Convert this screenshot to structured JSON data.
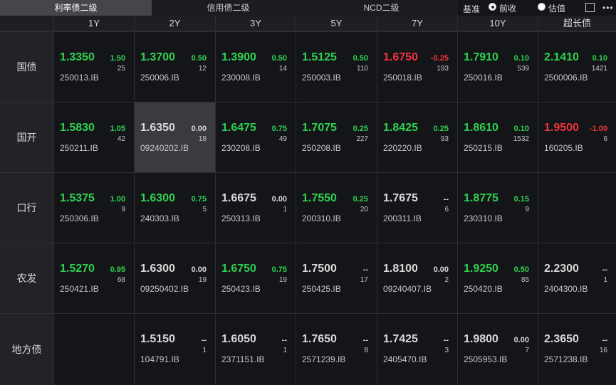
{
  "tabs": [
    "利率债二级",
    "信用债二级",
    "NCD二级"
  ],
  "active_tab": 0,
  "basis": {
    "label": "基准",
    "options": [
      "前收",
      "估值"
    ],
    "checked": 0
  },
  "columns": [
    "1Y",
    "2Y",
    "3Y",
    "5Y",
    "7Y",
    "10Y",
    "超长债"
  ],
  "rows": [
    {
      "label": "国债",
      "cells": [
        {
          "yield": "1.3350",
          "change": "1.50",
          "volume": "25",
          "code": "250013.IB",
          "color": "#2fd14f"
        },
        {
          "yield": "1.3700",
          "change": "0.50",
          "volume": "12",
          "code": "250006.IB",
          "color": "#2fd14f"
        },
        {
          "yield": "1.3900",
          "change": "0.50",
          "volume": "14",
          "code": "230008.IB",
          "color": "#2fd14f"
        },
        {
          "yield": "1.5125",
          "change": "0.50",
          "volume": "110",
          "code": "250003.IB",
          "color": "#2fd14f"
        },
        {
          "yield": "1.6750",
          "change": "-0.25",
          "volume": "193",
          "code": "250018.IB",
          "color": "#f2343d"
        },
        {
          "yield": "1.7910",
          "change": "0.10",
          "volume": "539",
          "code": "250016.IB",
          "color": "#2fd14f"
        },
        {
          "yield": "2.1410",
          "change": "0.10",
          "volume": "1421",
          "code": "2500006.IB",
          "color": "#2fd14f"
        }
      ]
    },
    {
      "label": "国开",
      "cells": [
        {
          "yield": "1.5830",
          "change": "1.05",
          "volume": "42",
          "code": "250211.IB",
          "color": "#2fd14f"
        },
        {
          "yield": "1.6350",
          "change": "0.00",
          "volume": "18",
          "code": "09240202.IB",
          "color": "#d9d9d9",
          "selected": true
        },
        {
          "yield": "1.6475",
          "change": "0.75",
          "volume": "49",
          "code": "230208.IB",
          "color": "#2fd14f"
        },
        {
          "yield": "1.7075",
          "change": "0.25",
          "volume": "227",
          "code": "250208.IB",
          "color": "#2fd14f"
        },
        {
          "yield": "1.8425",
          "change": "0.25",
          "volume": "93",
          "code": "220220.IB",
          "color": "#2fd14f"
        },
        {
          "yield": "1.8610",
          "change": "0.10",
          "volume": "1532",
          "code": "250215.IB",
          "color": "#2fd14f"
        },
        {
          "yield": "1.9500",
          "change": "-1.00",
          "volume": "6",
          "code": "160205.IB",
          "color": "#f2343d"
        }
      ]
    },
    {
      "label": "口行",
      "cells": [
        {
          "yield": "1.5375",
          "change": "1.00",
          "volume": "9",
          "code": "250306.IB",
          "color": "#2fd14f"
        },
        {
          "yield": "1.6300",
          "change": "0.75",
          "volume": "5",
          "code": "240303.IB",
          "color": "#2fd14f"
        },
        {
          "yield": "1.6675",
          "change": "0.00",
          "volume": "1",
          "code": "250313.IB",
          "color": "#d9d9d9"
        },
        {
          "yield": "1.7550",
          "change": "0.25",
          "volume": "20",
          "code": "200310.IB",
          "color": "#2fd14f"
        },
        {
          "yield": "1.7675",
          "change": "--",
          "volume": "6",
          "code": "200311.IB",
          "color": "#d9d9d9"
        },
        {
          "yield": "1.8775",
          "change": "0.15",
          "volume": "9",
          "code": "230310.IB",
          "color": "#2fd14f"
        },
        null
      ]
    },
    {
      "label": "农发",
      "cells": [
        {
          "yield": "1.5270",
          "change": "0.95",
          "volume": "68",
          "code": "250421.IB",
          "color": "#2fd14f"
        },
        {
          "yield": "1.6300",
          "change": "0.00",
          "volume": "19",
          "code": "09250402.IB",
          "color": "#d9d9d9"
        },
        {
          "yield": "1.6750",
          "change": "0.75",
          "volume": "19",
          "code": "250423.IB",
          "color": "#2fd14f"
        },
        {
          "yield": "1.7500",
          "change": "--",
          "volume": "17",
          "code": "250425.IB",
          "color": "#d9d9d9"
        },
        {
          "yield": "1.8100",
          "change": "0.00",
          "volume": "2",
          "code": "09240407.IB",
          "color": "#d9d9d9"
        },
        {
          "yield": "1.9250",
          "change": "0.50",
          "volume": "85",
          "code": "250420.IB",
          "color": "#2fd14f"
        },
        {
          "yield": "2.2300",
          "change": "--",
          "volume": "1",
          "code": "2404300.IB",
          "color": "#d9d9d9"
        }
      ]
    },
    {
      "label": "地方债",
      "cells": [
        null,
        {
          "yield": "1.5150",
          "change": "--",
          "volume": "1",
          "code": "104791.IB",
          "color": "#d9d9d9"
        },
        {
          "yield": "1.6050",
          "change": "--",
          "volume": "1",
          "code": "2371151.IB",
          "color": "#d9d9d9"
        },
        {
          "yield": "1.7650",
          "change": "--",
          "volume": "8",
          "code": "2571239.IB",
          "color": "#d9d9d9"
        },
        {
          "yield": "1.7425",
          "change": "--",
          "volume": "3",
          "code": "2405470.IB",
          "color": "#d9d9d9"
        },
        {
          "yield": "1.9800",
          "change": "0.00",
          "volume": "7",
          "code": "2505953.IB",
          "color": "#d9d9d9"
        },
        {
          "yield": "2.3650",
          "change": "--",
          "volume": "16",
          "code": "2571238.IB",
          "color": "#d9d9d9"
        }
      ]
    }
  ]
}
